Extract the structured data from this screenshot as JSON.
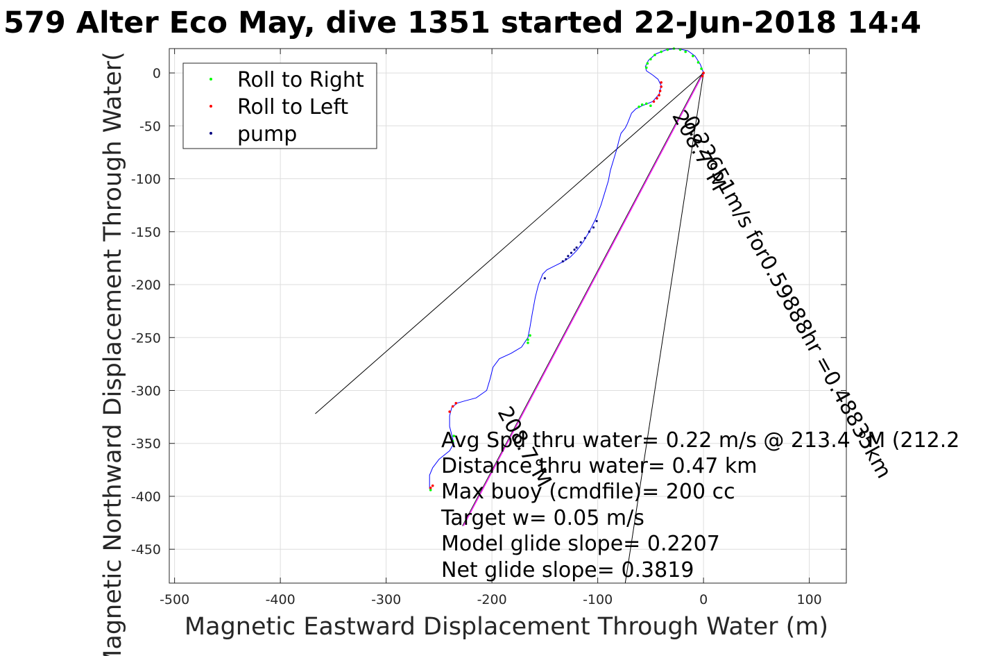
{
  "chart_data": {
    "type": "scatter",
    "title": "579 Alter Eco May, dive 1351 started 22-Jun-2018 14:4",
    "xlabel": "Magnetic Eastward Displacement Through Water (m)",
    "ylabel": "Magnetic Northward Displacement Through Water(",
    "xlim": [
      -505,
      135
    ],
    "ylim": [
      -482,
      23
    ],
    "xticks": [
      -500,
      -400,
      -300,
      -200,
      -100,
      0,
      100
    ],
    "yticks": [
      0,
      -50,
      -100,
      -150,
      -200,
      -250,
      -300,
      -350,
      -400,
      -450
    ],
    "grid": true,
    "legend_position": "top-left",
    "legend": [
      "Roll to Right",
      "Roll to Left",
      "pump"
    ],
    "colors": {
      "track": "#0000ff",
      "roll_right": "#00ff00",
      "roll_left": "#ff0000",
      "pump": "#000080",
      "avg_line": "#ff00ff",
      "lines": "#000000"
    },
    "track": [
      [
        0,
        0
      ],
      [
        -3,
        8
      ],
      [
        -8,
        16
      ],
      [
        -15,
        21
      ],
      [
        -25,
        23
      ],
      [
        -35,
        22
      ],
      [
        -45,
        18
      ],
      [
        -52,
        12
      ],
      [
        -55,
        6
      ],
      [
        -54,
        2
      ],
      [
        -48,
        -2
      ],
      [
        -43,
        -6
      ],
      [
        -40,
        -12
      ],
      [
        -42,
        -20
      ],
      [
        -48,
        -27
      ],
      [
        -58,
        -31
      ],
      [
        -64,
        -34
      ],
      [
        -68,
        -38
      ],
      [
        -70,
        -43
      ],
      [
        -72,
        -48
      ],
      [
        -74,
        -52
      ],
      [
        -78,
        -57
      ],
      [
        -80,
        -64
      ],
      [
        -82,
        -72
      ],
      [
        -85,
        -82
      ],
      [
        -88,
        -92
      ],
      [
        -90,
        -102
      ],
      [
        -93,
        -112
      ],
      [
        -97,
        -125
      ],
      [
        -102,
        -138
      ],
      [
        -108,
        -150
      ],
      [
        -114,
        -160
      ],
      [
        -120,
        -168
      ],
      [
        -126,
        -174
      ],
      [
        -132,
        -178
      ],
      [
        -140,
        -182
      ],
      [
        -148,
        -186
      ],
      [
        -152,
        -190
      ],
      [
        -156,
        -200
      ],
      [
        -159,
        -212
      ],
      [
        -162,
        -228
      ],
      [
        -164,
        -240
      ],
      [
        -166,
        -250
      ],
      [
        -172,
        -259
      ],
      [
        -182,
        -265
      ],
      [
        -193,
        -270
      ],
      [
        -199,
        -278
      ],
      [
        -202,
        -290
      ],
      [
        -205,
        -300
      ],
      [
        -215,
        -307
      ],
      [
        -226,
        -310
      ],
      [
        -233,
        -312
      ],
      [
        -238,
        -316
      ],
      [
        -240,
        -324
      ],
      [
        -240,
        -334
      ],
      [
        -238,
        -342
      ],
      [
        -236,
        -350
      ],
      [
        -240,
        -357
      ],
      [
        -250,
        -365
      ],
      [
        -256,
        -373
      ],
      [
        -259,
        -380
      ],
      [
        -259,
        -393
      ]
    ],
    "roll_right": [
      [
        -2,
        4
      ],
      [
        -5,
        10
      ],
      [
        -10,
        16
      ],
      [
        -17,
        20
      ],
      [
        -22,
        22
      ],
      [
        -28,
        23
      ],
      [
        -34,
        22
      ],
      [
        -40,
        20
      ],
      [
        -46,
        17
      ],
      [
        -50,
        13
      ],
      [
        -53,
        9
      ],
      [
        -54,
        5
      ],
      [
        -50,
        -31
      ],
      [
        -54,
        -29
      ],
      [
        -58,
        -30
      ],
      [
        -61,
        -32
      ],
      [
        -164,
        -248
      ],
      [
        -166,
        -252
      ],
      [
        -166,
        -255
      ],
      [
        -236,
        -343
      ],
      [
        -237,
        -348
      ],
      [
        -258,
        -394
      ]
    ],
    "roll_left": [
      [
        0,
        0
      ],
      [
        -1,
        -3
      ],
      [
        -40,
        -9
      ],
      [
        -40,
        -13
      ],
      [
        -41,
        -17
      ],
      [
        -42,
        -21
      ],
      [
        -44,
        -24
      ],
      [
        -47,
        -27
      ],
      [
        -234,
        -312
      ],
      [
        -237,
        -315
      ],
      [
        -240,
        -320
      ],
      [
        -256,
        -390
      ],
      [
        -258,
        -392
      ]
    ],
    "pump": [
      [
        -150,
        -194
      ],
      [
        -125,
        -170
      ],
      [
        -122,
        -167
      ],
      [
        -120,
        -165
      ],
      [
        -116,
        -160
      ],
      [
        -112,
        -156
      ],
      [
        -108,
        -150
      ],
      [
        -104,
        -146
      ],
      [
        -101,
        -140
      ],
      [
        -133,
        -178
      ],
      [
        -130,
        -176
      ],
      [
        -128,
        -173
      ]
    ],
    "lines": [
      {
        "name": "line-to-west",
        "from": [
          0,
          0
        ],
        "to": [
          -367,
          -322
        ]
      },
      {
        "name": "line-steep",
        "from": [
          0,
          0
        ],
        "to": [
          -74,
          -482
        ]
      },
      {
        "name": "line-avg",
        "from": [
          0,
          0
        ],
        "to": [
          -227,
          -428
        ]
      }
    ],
    "rotated_labels": [
      {
        "text": "0.22651m/s for0.59888hr =0.48835km",
        "at": [
          -20,
          -45
        ],
        "angle": 61.2
      },
      {
        "text": "208.7°M",
        "at": [
          -30,
          -40
        ],
        "angle": 61.2
      },
      {
        "text": "208.7°M",
        "at": [
          -195,
          -320
        ],
        "angle": 61.2
      }
    ],
    "stats": [
      "Avg Spd thru water=  0.22 m/s @ 213.4 °M (212.2",
      "Distance thru water=  0.47 km",
      "Max buoy (cmdfile)= 200 cc",
      "Target w= 0.05 m/s",
      "Model glide slope= 0.2207",
      "Net glide slope= 0.3819"
    ]
  }
}
